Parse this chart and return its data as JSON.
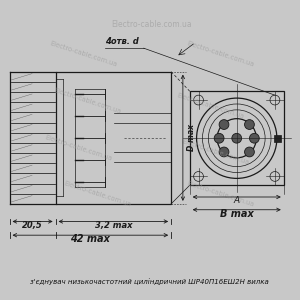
{
  "bg_color": "#c8c8c8",
  "line_color": "#1a1a1a",
  "watermark_color": "#999999",
  "watermark_text": "Electro-cable.com.ua",
  "caption": "з'єднувач низькочастотний циліндричний ШР40П16ЕШ2Н вилка",
  "dim_20_5": "20,5",
  "dim_3_2": "3,2 max",
  "dim_42": "42 max",
  "dim_B": "B max",
  "dim_A": "A",
  "dim_D": "D max",
  "dim_otv": "4отв. d",
  "caption_fontsize": 5.0
}
